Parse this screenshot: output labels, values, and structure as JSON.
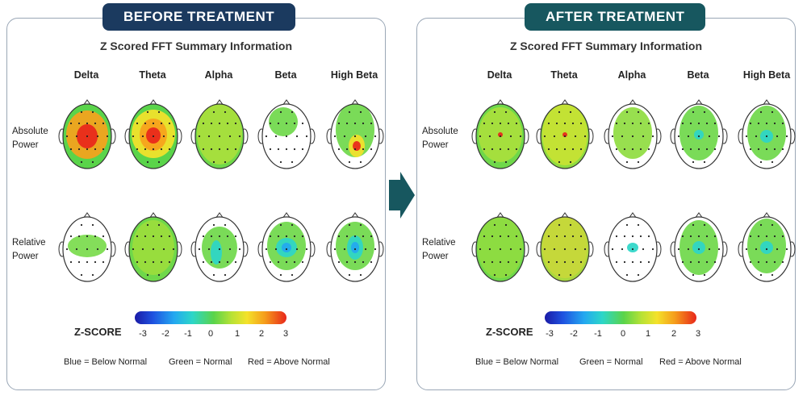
{
  "panels": {
    "before": {
      "banner": "BEFORE TREATMENT",
      "title": "Z Scored FFT Summary Information",
      "bands": [
        "Delta",
        "Theta",
        "Alpha",
        "Beta",
        "High Beta"
      ],
      "row_labels": {
        "absolute": [
          "Absolute",
          "Power"
        ],
        "relative": [
          "Relative",
          "Power"
        ]
      },
      "scale": {
        "label": "Z-SCORE",
        "ticks": [
          "-3",
          "-2",
          "-1",
          "0",
          "1",
          "2",
          "3"
        ]
      },
      "legend": [
        "Blue = Below Normal",
        "Green = Normal",
        "Red = Above Normal"
      ]
    },
    "after": {
      "banner": "AFTER TREATMENT",
      "title": "Z Scored FFT Summary Information",
      "bands": [
        "Delta",
        "Theta",
        "Alpha",
        "Beta",
        "High Beta"
      ],
      "row_labels": {
        "absolute": [
          "Absolute",
          "Power"
        ],
        "relative": [
          "Relative",
          "Power"
        ]
      },
      "scale": {
        "label": "Z-SCORE",
        "ticks": [
          "-3",
          "-2",
          "-1",
          "0",
          "1",
          "2",
          "3"
        ]
      },
      "legend": [
        "Blue = Below Normal",
        "Green = Normal",
        "Red = Above Normal"
      ]
    }
  },
  "colors": {
    "before_banner": "#1b3a5f",
    "after_banner": "#17575f",
    "arrow": "#17575f",
    "below_normal": "#1f52e0",
    "normal": "#5ad44a",
    "above_normal": "#e8261b"
  },
  "maps": {
    "before": {
      "absolute": [
        {
          "base": "#5ad44a",
          "blobs": [
            {
              "c": "#f6a21c",
              "z": 1.8
            },
            {
              "c": "#e8261b",
              "z": 2.6
            }
          ]
        },
        {
          "base": "#5ad44a",
          "blobs": [
            {
              "c": "#f4e22a",
              "z": 1.2
            },
            {
              "c": "#f6a21c",
              "z": 1.9
            },
            {
              "c": "#e8261b",
              "z": 2.6
            }
          ]
        },
        {
          "base": "#6fd84a",
          "blobs": [
            {
              "c": "#a9e03c",
              "z": 0.8
            }
          ]
        },
        {
          "base": "#ffffff",
          "blobs": [
            {
              "c": "#6fd84a",
              "z": 0.3
            }
          ]
        },
        {
          "base": "#ffffff",
          "blobs": [
            {
              "c": "#6fd84a",
              "z": 0.3
            },
            {
              "c": "#f4e22a",
              "z": 1.4
            },
            {
              "c": "#e8261b",
              "z": 2.4
            }
          ]
        }
      ],
      "relative": [
        {
          "base": "#ffffff",
          "blobs": [
            {
              "c": "#7adb4c",
              "z": 0.2
            }
          ]
        },
        {
          "base": "#6fd84a",
          "blobs": [
            {
              "c": "#9bdd3c",
              "z": 0.6
            }
          ]
        },
        {
          "base": "#ffffff",
          "blobs": [
            {
              "c": "#6fd84a",
              "z": 0.2
            },
            {
              "c": "#2cd6c8",
              "z": -1.3
            }
          ]
        },
        {
          "base": "#ffffff",
          "blobs": [
            {
              "c": "#6fd84a",
              "z": 0.2
            },
            {
              "c": "#2cd6c8",
              "z": -1.4
            },
            {
              "c": "#23a8f0",
              "z": -2.0
            }
          ]
        },
        {
          "base": "#ffffff",
          "blobs": [
            {
              "c": "#6fd84a",
              "z": 0.2
            },
            {
              "c": "#2cd6c8",
              "z": -1.4
            },
            {
              "c": "#23a8f0",
              "z": -2.1
            }
          ]
        }
      ]
    },
    "after": {
      "absolute": [
        {
          "base": "#6fd84a",
          "blobs": [
            {
              "c": "#a9e03c",
              "z": 0.7
            },
            {
              "c": "#e8261b",
              "z": 2.3
            }
          ]
        },
        {
          "base": "#8fdc40",
          "blobs": [
            {
              "c": "#c8e233",
              "z": 1.0
            },
            {
              "c": "#e8261b",
              "z": 2.3
            }
          ]
        },
        {
          "base": "#ffffff",
          "blobs": [
            {
              "c": "#8fdc40",
              "z": 0.5
            }
          ]
        },
        {
          "base": "#ffffff",
          "blobs": [
            {
              "c": "#6fd84a",
              "z": 0.3
            },
            {
              "c": "#2cd6c8",
              "z": -1.2
            }
          ]
        },
        {
          "base": "#ffffff",
          "blobs": [
            {
              "c": "#6fd84a",
              "z": 0.3
            },
            {
              "c": "#2cd6c8",
              "z": -1.3
            }
          ]
        }
      ],
      "relative": [
        {
          "base": "#6fd84a",
          "blobs": [
            {
              "c": "#8fdc40",
              "z": 0.4
            }
          ]
        },
        {
          "base": "#a9d83e",
          "blobs": [
            {
              "c": "#c8d83a",
              "z": 0.9
            }
          ]
        },
        {
          "base": "#ffffff",
          "blobs": [
            {
              "c": "#2cd6c8",
              "z": -1.3
            }
          ]
        },
        {
          "base": "#ffffff",
          "blobs": [
            {
              "c": "#6fd84a",
              "z": 0.2
            },
            {
              "c": "#2cd6c8",
              "z": -1.3
            }
          ]
        },
        {
          "base": "#ffffff",
          "blobs": [
            {
              "c": "#6fd84a",
              "z": 0.2
            },
            {
              "c": "#2cd6c8",
              "z": -1.4
            }
          ]
        }
      ]
    }
  }
}
